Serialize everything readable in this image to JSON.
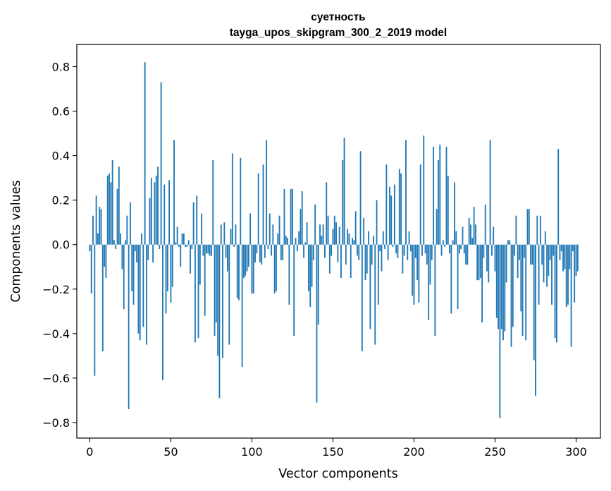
{
  "chart_data": {
    "type": "bar",
    "title": "суетность",
    "subtitle": "tayga_upos_skipgram_300_2_2019 model",
    "xlabel": "Vector components",
    "ylabel": "Components values",
    "xlim": [
      -8,
      315
    ],
    "ylim": [
      -0.87,
      0.9
    ],
    "xticks": [
      0,
      50,
      100,
      150,
      200,
      250,
      300
    ],
    "xtick_labels": [
      "0",
      "50",
      "100",
      "150",
      "200",
      "250",
      "300"
    ],
    "yticks": [
      -0.8,
      -0.6,
      -0.4,
      -0.2,
      0.0,
      0.2,
      0.4,
      0.6,
      0.8
    ],
    "ytick_labels": [
      "−0.8",
      "−0.6",
      "−0.4",
      "−0.2",
      "0.0",
      "0.2",
      "0.4",
      "0.6",
      "0.8"
    ],
    "bar_color": "#1f77b4",
    "grid": false,
    "values": [
      -0.03,
      -0.22,
      0.13,
      -0.59,
      0.22,
      0.05,
      0.17,
      0.16,
      -0.48,
      -0.1,
      -0.15,
      0.31,
      0.32,
      0.28,
      0.38,
      0.02,
      -0.02,
      0.25,
      0.35,
      0.05,
      -0.11,
      -0.29,
      0.02,
      0.13,
      -0.74,
      0.19,
      -0.21,
      -0.27,
      -0.03,
      -0.08,
      -0.4,
      -0.43,
      0.05,
      -0.37,
      0.82,
      -0.45,
      -0.07,
      0.21,
      0.3,
      -0.08,
      0.28,
      0.31,
      0.35,
      -0.02,
      0.73,
      -0.61,
      0.27,
      -0.31,
      -0.21,
      0.29,
      -0.26,
      -0.19,
      0.47,
      0.01,
      0.08,
      -0.01,
      -0.1,
      0.05,
      0.05,
      -0.01,
      -0.01,
      0.02,
      -0.13,
      -0.02,
      0.19,
      -0.44,
      0.22,
      -0.42,
      -0.18,
      0.14,
      -0.05,
      -0.32,
      -0.04,
      -0.04,
      -0.05,
      -0.05,
      0.38,
      -0.41,
      -0.35,
      -0.5,
      -0.69,
      0.09,
      -0.51,
      0.1,
      -0.06,
      -0.12,
      -0.45,
      0.07,
      0.41,
      -0.01,
      0.09,
      -0.24,
      -0.25,
      0.39,
      -0.55,
      -0.15,
      -0.14,
      -0.12,
      -0.1,
      0.14,
      -0.22,
      -0.22,
      -0.08,
      -0.04,
      0.32,
      -0.08,
      -0.09,
      0.36,
      -0.06,
      0.47,
      -0.02,
      0.14,
      -0.05,
      0.09,
      -0.22,
      -0.21,
      0.05,
      0.13,
      -0.07,
      -0.07,
      0.25,
      0.04,
      0.03,
      -0.27,
      0.25,
      0.25,
      -0.41,
      0.03,
      -0.03,
      0.06,
      0.16,
      0.24,
      -0.06,
      0.01,
      0.1,
      -0.21,
      -0.28,
      -0.19,
      -0.07,
      0.18,
      -0.71,
      -0.36,
      0.09,
      0.04,
      0.09,
      -0.06,
      0.28,
      0.13,
      -0.13,
      -0.05,
      0.07,
      0.13,
      0.1,
      -0.08,
      0.08,
      -0.15,
      0.38,
      0.48,
      -0.09,
      0.07,
      0.05,
      -0.15,
      0.03,
      0.02,
      0.15,
      -0.05,
      -0.07,
      0.42,
      -0.48,
      0.12,
      -0.16,
      -0.13,
      0.06,
      -0.38,
      -0.09,
      0.04,
      -0.45,
      0.2,
      -0.27,
      -0.03,
      -0.12,
      0.06,
      -0.02,
      0.36,
      -0.07,
      0.26,
      0.22,
      -0.01,
      0.27,
      -0.04,
      -0.06,
      0.34,
      0.32,
      -0.13,
      -0.05,
      0.47,
      -0.07,
      0.06,
      -0.03,
      -0.23,
      -0.27,
      -0.06,
      -0.16,
      -0.26,
      0.36,
      -0.05,
      0.49,
      -0.04,
      -0.09,
      -0.34,
      -0.18,
      -0.07,
      0.44,
      -0.41,
      0.16,
      0.38,
      0.45,
      -0.05,
      0.02,
      -0.01,
      0.44,
      0.31,
      -0.04,
      -0.31,
      0.02,
      0.28,
      0.06,
      -0.29,
      -0.04,
      -0.02,
      0.08,
      -0.04,
      -0.09,
      -0.09,
      0.12,
      0.09,
      0.03,
      0.17,
      0.09,
      -0.16,
      -0.16,
      -0.15,
      -0.35,
      -0.06,
      0.18,
      -0.12,
      -0.17,
      0.47,
      -0.05,
      0.08,
      -0.12,
      -0.33,
      -0.38,
      -0.78,
      -0.38,
      -0.43,
      -0.39,
      -0.17,
      0.02,
      0.02,
      -0.46,
      -0.37,
      -0.05,
      0.13,
      -0.15,
      -0.07,
      -0.3,
      -0.41,
      -0.06,
      -0.43,
      0.16,
      0.16,
      -0.09,
      -0.09,
      -0.52,
      -0.68,
      0.13,
      -0.27,
      0.13,
      -0.09,
      -0.17,
      0.06,
      -0.19,
      -0.14,
      -0.07,
      -0.27,
      -0.05,
      -0.42,
      -0.44,
      0.43,
      -0.07,
      -0.03,
      -0.12,
      -0.11,
      -0.28,
      -0.27,
      -0.11,
      -0.46,
      -0.03,
      -0.26,
      -0.14,
      -0.12
    ]
  }
}
